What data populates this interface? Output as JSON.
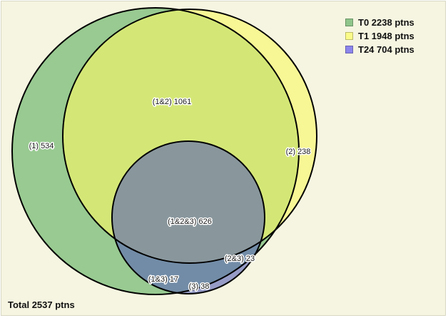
{
  "legend": [
    {
      "label": "T0 2238 ptns",
      "color": "#8fc58a"
    },
    {
      "label": "T1 1948 ptns",
      "color": "#fbfb8a"
    },
    {
      "label": "T24 704 ptns",
      "color": "#8c85ec"
    }
  ],
  "regions": {
    "only1": "(1) 534",
    "r12": "(1&2) 1061",
    "only2": "(2) 238",
    "r123": "(1&2&3) 626",
    "r23": "(2&3) 23",
    "r13": "(1&3) 17",
    "only3": "(3) 38"
  },
  "total": "Total 2537 ptns"
}
